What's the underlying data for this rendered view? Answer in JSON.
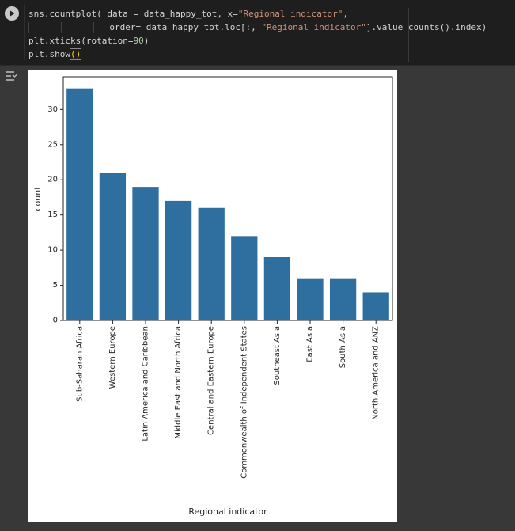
{
  "cell": {
    "code_lines": [
      {
        "prefix": "sns.countplot( data = data_happy_tot, x=",
        "str": "\"Regional indicator\"",
        "suffix": ","
      },
      {
        "prefix": "order= data_happy_tot.loc[:, ",
        "str": "\"Regional indicator\"",
        "suffix": "].value_counts().index)"
      },
      {
        "prefix": "plt.xticks(rotation=",
        "num": "90",
        "suffix": ")"
      },
      {
        "prefix": "plt.show",
        "hl": "()",
        "suffix": ""
      }
    ]
  },
  "icons": {
    "run": "play-icon",
    "output_toggle": "output-toggle-icon"
  },
  "colors": {
    "bar": "#2f6fa0",
    "cell_bg": "#1e1e1e",
    "page_bg": "#383838",
    "string": "#ce9178",
    "number": "#b5cea8"
  },
  "chart_data": {
    "type": "bar",
    "categories": [
      "Sub-Saharan Africa",
      "Western Europe",
      "Latin America and Caribbean",
      "Middle East and North Africa",
      "Central and Eastern Europe",
      "Commonwealth of Independent States",
      "Southeast Asia",
      "East Asia",
      "South Asia",
      "North America and ANZ"
    ],
    "values": [
      33,
      21,
      19,
      17,
      16,
      12,
      9,
      6,
      6,
      4
    ],
    "xlabel": "Regional indicator",
    "ylabel": "count",
    "ylim": [
      0,
      34.65
    ],
    "yticks": [
      0,
      5,
      10,
      15,
      20,
      25,
      30
    ],
    "grid": false
  }
}
